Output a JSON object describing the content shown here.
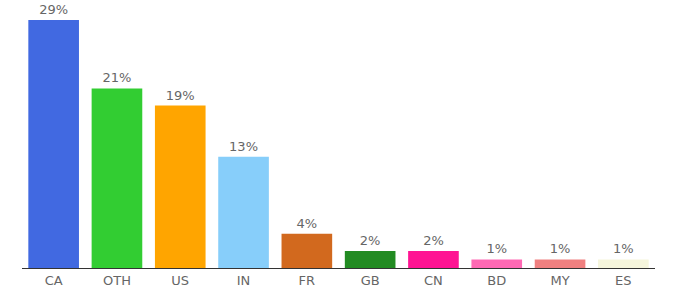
{
  "chart_data": {
    "type": "bar",
    "categories": [
      "CA",
      "OTH",
      "US",
      "IN",
      "FR",
      "GB",
      "CN",
      "BD",
      "MY",
      "ES"
    ],
    "values": [
      29,
      21,
      19,
      13,
      4,
      2,
      2,
      1,
      1,
      1
    ],
    "value_labels": [
      "29%",
      "21%",
      "19%",
      "13%",
      "4%",
      "2%",
      "2%",
      "1%",
      "1%",
      "1%"
    ],
    "colors": [
      "#4169e1",
      "#32cd32",
      "#ffa500",
      "#87cefa",
      "#d2691e",
      "#228b22",
      "#ff1493",
      "#ff69b4",
      "#f08080",
      "#f5f5dc"
    ],
    "ylim": [
      0,
      29
    ],
    "grid": false,
    "data_labels": true,
    "tick_labels": "x"
  }
}
